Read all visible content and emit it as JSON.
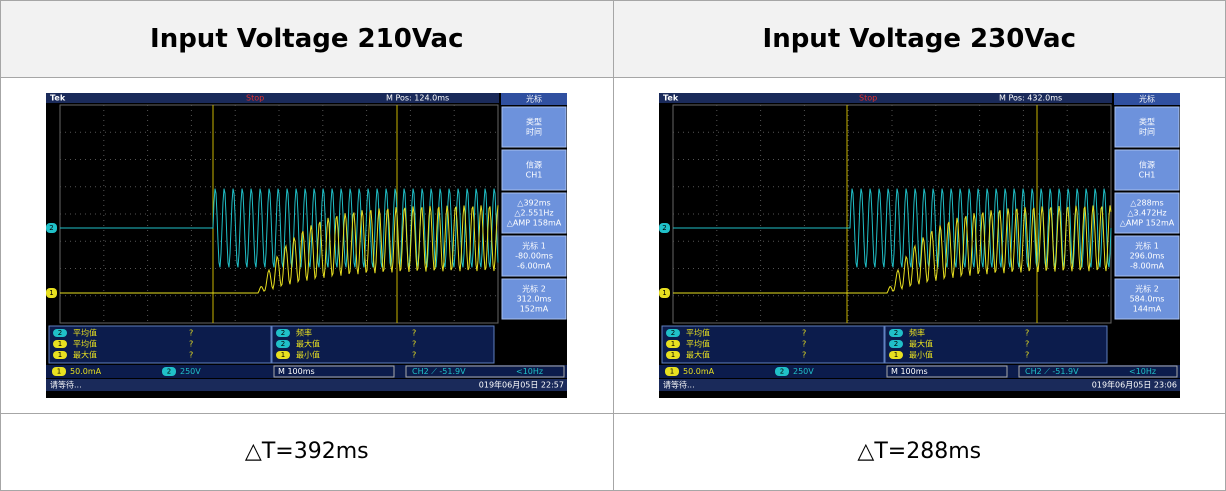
{
  "table": {
    "header": [
      "Input Voltage 210Vac",
      "Input Voltage 230Vac"
    ],
    "footer": [
      "△T=392ms",
      "△T=288ms"
    ]
  },
  "scopes": [
    {
      "brand": "Tek",
      "state": "Stop",
      "position": "M Pos: 124.0ms",
      "menu_title": "光标",
      "menu": [
        [
          "类型",
          "时间"
        ],
        [
          "信源",
          "CH1"
        ],
        [
          "△392ms",
          "△2.551Hz",
          "△AMP 158mA"
        ],
        [
          "光标 1",
          "-80.00ms",
          "-6.00mA"
        ],
        [
          "光标 2",
          "312.0ms",
          "152mA"
        ]
      ],
      "measurements": [
        {
          "channel": "2",
          "name": "平均值",
          "value": "?"
        },
        {
          "channel": "1",
          "name": "平均值",
          "value": "?"
        },
        {
          "channel": "1",
          "name": "最大值",
          "value": "?"
        },
        {
          "channel": "2",
          "name": "频率",
          "value": "?"
        },
        {
          "channel": "2",
          "name": "最大值",
          "value": "?"
        },
        {
          "channel": "1",
          "name": "最小值",
          "value": "?"
        }
      ],
      "channels": [
        {
          "channel": "1",
          "scale": "50.0mA"
        },
        {
          "channel": "2",
          "scale": "250V"
        }
      ],
      "timebase": "M 100ms",
      "trigger": "CH2 ⟋ -51.9V",
      "trigger_freq": "<10Hz",
      "status": "请等待...",
      "datetime": "019年06月05日 22:57"
    },
    {
      "brand": "Tek",
      "state": "Stop",
      "position": "M Pos: 432.0ms",
      "menu_title": "光标",
      "menu": [
        [
          "类型",
          "时间"
        ],
        [
          "信源",
          "CH1"
        ],
        [
          "△288ms",
          "△3.472Hz",
          "△AMP 152mA"
        ],
        [
          "光标 1",
          "296.0ms",
          "-8.00mA"
        ],
        [
          "光标 2",
          "584.0ms",
          "144mA"
        ]
      ],
      "measurements": [
        {
          "channel": "2",
          "name": "平均值",
          "value": "?"
        },
        {
          "channel": "1",
          "name": "平均值",
          "value": "?"
        },
        {
          "channel": "1",
          "name": "最大值",
          "value": "?"
        },
        {
          "channel": "2",
          "name": "频率",
          "value": "?"
        },
        {
          "channel": "2",
          "name": "最大值",
          "value": "?"
        },
        {
          "channel": "1",
          "name": "最小值",
          "value": "?"
        }
      ],
      "channels": [
        {
          "channel": "1",
          "scale": "50.0mA"
        },
        {
          "channel": "2",
          "scale": "250V"
        }
      ],
      "timebase": "M 100ms",
      "trigger": "CH2 ⟋ -51.9V",
      "trigger_freq": "<10Hz",
      "status": "请等待...",
      "datetime": "019年06月05日 23:06"
    }
  ]
}
